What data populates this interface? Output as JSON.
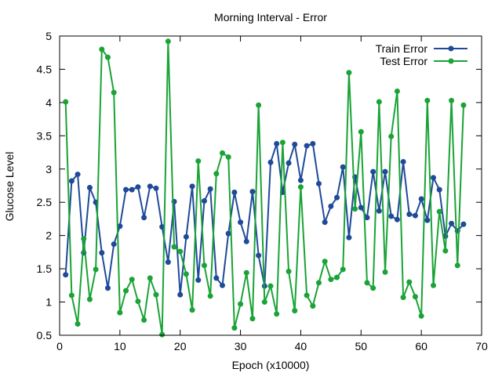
{
  "chart_data": {
    "type": "line",
    "title": "Morning Interval - Error",
    "xlabel": "Epoch (x10000)",
    "ylabel": "Glucose Level",
    "xlim": [
      0,
      70
    ],
    "ylim": [
      0.5,
      5
    ],
    "x_ticks": [
      0,
      10,
      20,
      30,
      40,
      50,
      60,
      70
    ],
    "y_ticks": [
      0.5,
      1,
      1.5,
      2,
      2.5,
      3,
      3.5,
      4,
      4.5,
      5
    ],
    "grid": false,
    "legend_position": "top-right",
    "x": [
      1,
      2,
      3,
      4,
      5,
      6,
      7,
      8,
      9,
      10,
      11,
      12,
      13,
      14,
      15,
      16,
      17,
      18,
      19,
      20,
      21,
      22,
      23,
      24,
      25,
      26,
      27,
      28,
      29,
      30,
      31,
      32,
      33,
      34,
      35,
      36,
      37,
      38,
      39,
      40,
      41,
      42,
      43,
      44,
      45,
      46,
      47,
      48,
      49,
      50,
      51,
      52,
      53,
      54,
      55,
      56,
      57,
      58,
      59,
      60,
      61,
      62,
      63,
      64,
      65,
      66,
      67
    ],
    "series": [
      {
        "name": "Train Error",
        "color": "#1f4a99",
        "values": [
          1.41,
          2.82,
          2.92,
          1.74,
          2.72,
          2.5,
          1.74,
          1.21,
          1.87,
          2.14,
          2.69,
          2.69,
          2.73,
          2.27,
          2.74,
          2.71,
          2.13,
          1.6,
          2.51,
          1.11,
          1.98,
          2.74,
          1.33,
          2.52,
          2.7,
          1.36,
          1.25,
          2.03,
          2.65,
          2.2,
          1.91,
          2.66,
          1.7,
          1.24,
          3.1,
          3.38,
          2.65,
          3.09,
          3.37,
          2.83,
          3.35,
          3.38,
          2.78,
          2.2,
          2.44,
          2.57,
          3.03,
          1.97,
          2.88,
          2.42,
          2.27,
          2.96,
          2.37,
          2.96,
          2.29,
          2.24,
          3.11,
          2.32,
          2.3,
          2.55,
          2.23,
          2.87,
          2.69,
          1.99,
          2.18,
          2.07,
          2.17
        ]
      },
      {
        "name": "Test Error",
        "color": "#1aa336",
        "values": [
          4.01,
          1.1,
          0.67,
          1.95,
          1.04,
          1.49,
          4.8,
          4.68,
          4.15,
          0.84,
          1.17,
          1.34,
          1.01,
          0.73,
          1.36,
          1.11,
          0.51,
          4.92,
          1.83,
          1.76,
          1.42,
          0.88,
          3.12,
          1.55,
          1.09,
          2.93,
          3.24,
          3.18,
          0.61,
          0.97,
          1.44,
          0.75,
          3.96,
          1.0,
          1.24,
          0.82,
          3.4,
          1.46,
          0.87,
          2.73,
          1.1,
          0.94,
          1.29,
          1.61,
          1.34,
          1.37,
          1.49,
          4.45,
          2.4,
          3.56,
          1.29,
          1.21,
          4.01,
          1.45,
          3.49,
          4.17,
          1.07,
          1.3,
          1.08,
          0.79,
          4.03,
          1.25,
          2.36,
          1.77,
          4.03,
          1.55,
          3.96
        ]
      }
    ]
  }
}
